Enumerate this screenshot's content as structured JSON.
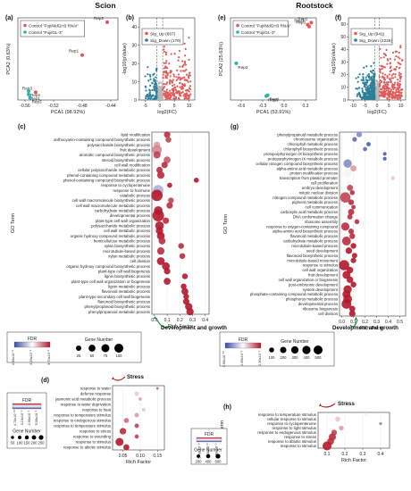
{
  "headers": {
    "left": "Scion",
    "right": "Rootstock"
  },
  "colors": {
    "up": "#e05a5a",
    "down": "#2a7f98",
    "teal": "#2ab3a6",
    "rep": "#e05a5a",
    "dark": "#111111",
    "green_arrow": "#1a8a3a",
    "red_arrow": "#c01a1a",
    "fdr_low": "#3b4aa0",
    "fdr_mid": "#ffffff",
    "fdr_high": "#b2182b"
  },
  "panels": {
    "a": {
      "label": "(a)",
      "legend": [
        "Control \"Fuji/MdGH3 RNAi\"",
        "Control \"Fuji/GL-3\""
      ],
      "xlabel": "PCA1 (98.92%)",
      "ylabel": "PCA2 (0.63%)",
      "xticks": [
        "-0.56",
        "-0.52",
        "-0.48",
        "-0.44"
      ],
      "points": [
        "Rep1",
        "Rep2",
        "Rep3",
        "Rep1",
        "Rep2",
        "Rep3"
      ]
    },
    "b": {
      "label": "(b)",
      "legend": [
        "Sig_Up (667)",
        "Sig_Down (176)"
      ],
      "xlabel": "log2(FC)",
      "ylabel": "-log10(pValue)",
      "xticks": [
        "-5",
        "0",
        "5",
        "10"
      ],
      "yticks": [
        "0",
        "10",
        "20",
        "30",
        "40"
      ]
    },
    "e": {
      "label": "(e)",
      "legend": [
        "Control \"Fuji/MdGH3 RNAi\"",
        "Control \"Fuji/GL-3\""
      ],
      "xlabel": "PCA1 (53.91%)",
      "ylabel": "PCA2 (25.63%)",
      "xticks": [
        "-0.6",
        "-0.3",
        "0.0",
        "0.3"
      ],
      "points": [
        "Rep1",
        "Rep2",
        "Rep3",
        "Rep1",
        "Rep2",
        "Rep3"
      ]
    },
    "f": {
      "label": "(f)",
      "legend": [
        "Sig_Up (941)",
        "Sig_Down (2226)"
      ],
      "xlabel": "log2(FC)",
      "ylabel": "-log10(pValue)",
      "xticks": [
        "-10",
        "-5",
        "0",
        "5",
        "10"
      ],
      "yticks": [
        "0",
        "10",
        "20",
        "30",
        "40",
        "50",
        "60"
      ]
    },
    "c": {
      "label": "(c)",
      "ylabel": "GO Term",
      "xlabel": "Rich Factor",
      "xticks": [
        "0.0",
        "0.1",
        "0.2",
        "0.3",
        "0.4"
      ],
      "terms": [
        "lipid modification",
        "anthocyanin-containing compound biosynthetic process",
        "polysaccharide biosynthetic process",
        "fruit development",
        "aromatic compound biosynthetic process",
        "steroid biosynthetic process",
        "cell wall modification",
        "cellular polysaccharide metabolic process",
        "phenol-containing compound metabolic process",
        "phenol-containing compound biosynthetic process",
        "response to cyclopentenone",
        "response to hormone",
        "catabolic process",
        "cell wall macromolecule biosynthetic process",
        "cell wall macromolecule metabolic process",
        "carbohydrate metabolic process",
        "developmental process",
        "plant-type cell wall organization",
        "polysaccharide metabolic process",
        "cell wall metabolic process",
        "organic hydroxy compound metabolic process",
        "hemicellulose metabolic process",
        "xylan biosynthetic process",
        "microtubule-based process",
        "xylan metabolic process",
        "cell division",
        "organic hydroxy compound biosynthetic process",
        "plant-type cell wall biogenesis",
        "lignin biosynthetic process",
        "plant-type cell wall organization or biogenesis",
        "lignin metabolic process",
        "flavonoid metabolic process",
        "plant-type secondary cell wall biogenesis",
        "flavonoid biosynthetic process",
        "phenylpropanoid biosynthetic process",
        "phenylpropanoid metabolic process"
      ],
      "fdr_title": "FDR",
      "fdr_ticks": [
        "4.50x10⁻⁹",
        "2.25x10⁻³",
        "9.70x10⁻²"
      ],
      "gene_title": "Gene Number",
      "gene_ticks": [
        "25",
        "50",
        "75",
        "100"
      ],
      "annotation": "Development and growth"
    },
    "g": {
      "label": "(g)",
      "ylabel": "GO Term",
      "xlabel": "Rich Factor",
      "xticks": [
        "0.0",
        "0.1",
        "0.2",
        "0.3",
        "0.4",
        "0.5"
      ],
      "terms": [
        "phenylpropanoid metabolic process",
        "chromosome organization",
        "chlorophyll metabolic process",
        "chlorophyll biosynthetic process",
        "protoporphyrinogen IX biosynthetic process",
        "protoporphyrinogen IX metabolic process",
        "cellular nitrogen compound biosynthetic process",
        "alpha-amino acid metabolic process",
        "protein modification process",
        "transcription from plastid promoter",
        "cell proliferation",
        "embryo development",
        "mitotic nuclear division",
        "nitrogen compound metabolic process",
        "pigment metabolic process",
        "cell communication",
        "carboxylic acid metabolic process",
        "DNA conformation change",
        "ribosome assembly",
        "response to oxygen-containing compound",
        "alpha-amino acid biosynthetic process",
        "flavonoid metabolic process",
        "carbohydrate metabolic process",
        "microtubule-based process",
        "seed development",
        "flavonoid biosynthetic process",
        "microtubule-based movement",
        "response to stimulus",
        "cell wall organization",
        "fruit development",
        "cell wall organization or biogenesis",
        "post-embryonic development",
        "system development",
        "phosphate-containing compound metabolic process",
        "phosphorus metabolic process",
        "developmental process",
        "ribosome biogenesis",
        "cell division"
      ],
      "fdr_title": "FDR",
      "fdr_ticks": [
        "3.90x10⁻¹⁰",
        "1.95x10⁻²",
        "1.30x10⁻¹"
      ],
      "gene_title": "Gene Number",
      "gene_ticks": [
        "100",
        "200",
        "300",
        "400",
        "500"
      ],
      "annotation": "Development and growth"
    },
    "d": {
      "label": "(d)",
      "ylabel": "GO Term",
      "xlabel": "Rich Factor",
      "xticks": [
        "0.05",
        "0.10",
        "0.15"
      ],
      "terms": [
        "response to water",
        "defense response",
        "jasmonic acid metabolic process",
        "response to water deprivation",
        "response to heat",
        "response to temperature stimulus",
        "response to endogenous stimulus",
        "response to temperature stimulus",
        "response to stress",
        "response to wounding",
        "response to stimulus",
        "response to abiotic stimulus"
      ],
      "fdr_title": "FDR",
      "fdr_ticks": [
        "4.70x10⁻¹⁰",
        "3.10x10⁻²",
        "2.90x10⁻¹",
        "5.00x10⁻¹"
      ],
      "gene_title": "Gene Number",
      "gene_ticks": [
        "50",
        "100",
        "150",
        "200",
        "250"
      ],
      "annotation": "Stress"
    },
    "h": {
      "label": "(h)",
      "ylabel": "GO Term",
      "xlabel": "Rich Factor",
      "xticks": [
        "0.1",
        "0.2",
        "0.3",
        "0.4"
      ],
      "terms": [
        "response to temperature stimulus",
        "cellular response to stimulus",
        "response to cyclopentenone",
        "response to light stimulus",
        "response to endogenous stimulus",
        "response to stress",
        "response to abiotic stimulus",
        "response to stimulus"
      ],
      "fdr_title": "FDR",
      "fdr_ticks": [
        "5.40x10⁻⁹",
        "1.80x10⁻³",
        "3.60x10⁻³"
      ],
      "gene_title": "Gene Number",
      "gene_ticks": [
        "200",
        "400",
        "600"
      ],
      "annotation": "Stress"
    }
  },
  "chart_data": [
    {
      "type": "scatter",
      "panel": "a",
      "series": [
        {
          "name": "Control \"Fuji/MdGH3 RNAi\"",
          "x": [
            -0.445,
            -0.48,
            -0.545
          ],
          "y": [
            0.41,
            0.11,
            -0.23
          ],
          "labels": [
            "Rep2",
            "Rep1",
            "Rep3"
          ]
        },
        {
          "name": "Control \"Fuji/GL-3\"",
          "x": [
            -0.555,
            -0.555,
            -0.553
          ],
          "y": [
            -0.22,
            -0.25,
            -0.28
          ],
          "labels": [
            "Rep2",
            "Rep1",
            "Rep3"
          ]
        }
      ]
    },
    {
      "type": "scatter",
      "panel": "b",
      "series": [
        {
          "name": "Sig_Up",
          "count": 667
        },
        {
          "name": "Sig_Down",
          "count": 176
        }
      ],
      "xlim": [
        -7,
        12
      ],
      "ylim": [
        0,
        45
      ]
    },
    {
      "type": "scatter",
      "panel": "e",
      "series": [
        {
          "name": "Control \"Fuji/MdGH3 RNAi\"",
          "x": [
            0.33,
            0.38,
            0.35
          ],
          "y": [
            0.38,
            0.4,
            0.36
          ],
          "labels": [
            "Rep1",
            "Rep2",
            "Rep3"
          ]
        },
        {
          "name": "Control \"Fuji/GL-3\"",
          "x": [
            -0.67,
            -0.23,
            -0.25
          ],
          "y": [
            -0.02,
            -0.35,
            -0.36
          ],
          "labels": [
            "Rep2",
            "Rep1",
            "Rep3"
          ]
        }
      ]
    },
    {
      "type": "scatter",
      "panel": "f",
      "series": [
        {
          "name": "Sig_Up",
          "count": 941
        },
        {
          "name": "Sig_Down",
          "count": 2226
        }
      ],
      "xlim": [
        -12,
        12
      ],
      "ylim": [
        0,
        65
      ]
    },
    {
      "type": "scatter",
      "panel": "c",
      "xlim": [
        -0.02,
        0.43
      ],
      "rich": [
        0.1,
        0.11,
        0.02,
        0.02,
        0.02,
        0.1,
        0.08,
        0.04,
        0.05,
        0.33,
        0.12,
        0.03,
        0.02,
        0.13,
        0.12,
        0.03,
        0.03,
        0.09,
        0.04,
        0.04,
        0.05,
        0.06,
        0.21,
        0.05,
        0.22,
        0.05,
        0.09,
        0.1,
        0.24,
        0.1,
        0.23,
        0.24,
        0.25,
        0.25,
        0.27,
        0.28
      ],
      "genes": [
        20,
        15,
        20,
        60,
        30,
        25,
        20,
        20,
        30,
        10,
        10,
        75,
        90,
        15,
        20,
        45,
        95,
        20,
        45,
        30,
        35,
        25,
        15,
        30,
        15,
        35,
        35,
        20,
        15,
        25,
        15,
        25,
        15,
        20,
        30,
        30
      ],
      "fdr": [
        0.95,
        0.9,
        0.7,
        0.75,
        0.9,
        0.85,
        0.95,
        0.95,
        0.95,
        1,
        1,
        0.3,
        1,
        0.9,
        0.95,
        1,
        1,
        0.95,
        1,
        1,
        1,
        0.95,
        0.95,
        0.95,
        0.95,
        1,
        1,
        1,
        1,
        1,
        1,
        1,
        1,
        1,
        1,
        1
      ]
    },
    {
      "type": "scatter",
      "panel": "g",
      "xlim": [
        -0.02,
        0.55
      ],
      "rich": [
        0.15,
        0.11,
        0.23,
        0.2,
        0.37,
        0.37,
        0.05,
        0.1,
        0.05,
        0.44,
        0.06,
        0.07,
        0.09,
        0.03,
        0.08,
        0.1,
        0.08,
        0.07,
        0.13,
        0.03,
        0.08,
        0.09,
        0.04,
        0.1,
        0.06,
        0.11,
        0.1,
        0.02,
        0.07,
        0.04,
        0.07,
        0.1,
        0.05,
        0.04,
        0.05,
        0.04,
        0.09,
        0.09
      ],
      "genes": [
        90,
        50,
        40,
        35,
        20,
        20,
        300,
        120,
        280,
        30,
        50,
        120,
        60,
        500,
        100,
        40,
        130,
        80,
        60,
        280,
        90,
        100,
        330,
        100,
        150,
        80,
        90,
        480,
        150,
        260,
        150,
        100,
        290,
        260,
        330,
        420,
        120,
        140
      ],
      "fdr": [
        0.2,
        0.1,
        0.05,
        0.1,
        0.05,
        0.05,
        0.2,
        0.7,
        0.5,
        0.6,
        0.5,
        0.9,
        0.95,
        0.9,
        0.95,
        0.95,
        0.95,
        0.95,
        0.95,
        0.95,
        0.95,
        0.95,
        0.95,
        1,
        1,
        1,
        1,
        1,
        1,
        1,
        1,
        1,
        1,
        1,
        1,
        1,
        1,
        1
      ]
    },
    {
      "type": "scatter",
      "panel": "d",
      "xlim": [
        0.02,
        0.17
      ],
      "rich": [
        0.15,
        0.09,
        0.1,
        0.1,
        0.11,
        0.09,
        0.06,
        0.09,
        0.05,
        0.09,
        0.04,
        0.06
      ],
      "genes": [
        10,
        50,
        20,
        40,
        30,
        50,
        80,
        50,
        150,
        45,
        250,
        120
      ],
      "fdr": [
        0.8,
        0.6,
        0.7,
        0.5,
        0.6,
        0.7,
        0.8,
        0.9,
        0.95,
        0.9,
        1,
        1
      ]
    },
    {
      "type": "scatter",
      "panel": "h",
      "xlim": [
        0.05,
        0.45
      ],
      "rich": [
        0.32,
        0.16,
        0.4,
        0.18,
        0.14,
        0.13,
        0.12,
        0.1
      ],
      "genes": [
        80,
        150,
        20,
        120,
        200,
        400,
        350,
        700
      ],
      "fdr": [
        0.5,
        0.6,
        0.2,
        0.7,
        0.9,
        0.95,
        0.95,
        1
      ]
    }
  ]
}
